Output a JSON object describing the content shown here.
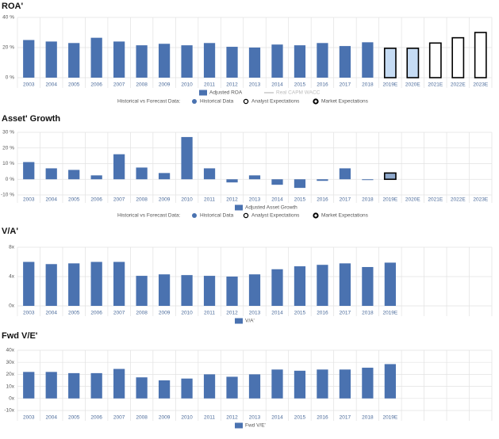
{
  "chart_data": [
    {
      "type": "bar",
      "title": "ROA'",
      "categories": [
        "2003",
        "2004",
        "2005",
        "2006",
        "2007",
        "2008",
        "2009",
        "2010",
        "2011",
        "2012",
        "2013",
        "2014",
        "2015",
        "2016",
        "2017",
        "2018",
        "2019E",
        "2020E",
        "2021E",
        "2022E",
        "2023E"
      ],
      "series": [
        {
          "name": "Adjusted ROA",
          "color": "#4a72b0",
          "values": [
            25,
            24,
            23,
            26.5,
            24,
            21.5,
            22.5,
            21.5,
            23,
            20.5,
            20,
            22,
            21.5,
            23,
            21,
            23.5,
            19.5,
            19.5,
            23,
            26.5,
            30
          ],
          "colors": [
            "#4a72b0",
            "#4a72b0",
            "#4a72b0",
            "#4a72b0",
            "#4a72b0",
            "#4a72b0",
            "#4a72b0",
            "#4a72b0",
            "#4a72b0",
            "#4a72b0",
            "#4a72b0",
            "#4a72b0",
            "#4a72b0",
            "#4a72b0",
            "#4a72b0",
            "#4a72b0",
            "#c6dcf4",
            "#c6dcf4",
            "#ffffff",
            "#ffffff",
            "#ffffff"
          ],
          "borders": [
            null,
            null,
            null,
            null,
            null,
            null,
            null,
            null,
            null,
            null,
            null,
            null,
            null,
            null,
            null,
            null,
            "#000000",
            "#000000",
            "#000000",
            "#000000",
            "#000000"
          ]
        }
      ],
      "extra_legend": {
        "name": "Real CAPM WACC",
        "color": "#c8c8c8"
      },
      "forecast_legend": {
        "title": "Historical vs Forecast Data:",
        "items": [
          "Historical Data",
          "Analyst Expectations",
          "Market Expectations"
        ]
      },
      "ylim": [
        0,
        40
      ],
      "yticks": [
        {
          "value": 0,
          "label": "0 %"
        },
        {
          "value": 20,
          "label": "20 %"
        },
        {
          "value": 40,
          "label": "40 %"
        }
      ],
      "grid": true
    },
    {
      "type": "bar",
      "title": "Asset' Growth",
      "categories": [
        "2003",
        "2004",
        "2005",
        "2006",
        "2007",
        "2008",
        "2009",
        "2010",
        "2011",
        "2012",
        "2013",
        "2014",
        "2015",
        "2016",
        "2017",
        "2018",
        "2019E",
        "2020E",
        "2021E",
        "2022E",
        "2023E"
      ],
      "series": [
        {
          "name": "Adjusted Asset Growth",
          "color": "#4a72b0",
          "values": [
            11,
            7,
            6,
            2.5,
            16,
            7.5,
            4,
            27,
            7,
            -2,
            2.5,
            -3.5,
            -5.5,
            -1,
            7,
            -0.5,
            4,
            0,
            0,
            0,
            0
          ],
          "colors": [
            "#4a72b0",
            "#4a72b0",
            "#4a72b0",
            "#4a72b0",
            "#4a72b0",
            "#4a72b0",
            "#4a72b0",
            "#4a72b0",
            "#4a72b0",
            "#4a72b0",
            "#4a72b0",
            "#4a72b0",
            "#4a72b0",
            "#4a72b0",
            "#4a72b0",
            "#4a72b0",
            "#8fa9cc",
            "#c6dcf4",
            "#ffffff",
            "#ffffff",
            "#ffffff"
          ],
          "borders": [
            null,
            null,
            null,
            null,
            null,
            null,
            null,
            null,
            null,
            null,
            null,
            null,
            null,
            null,
            null,
            null,
            "#000000",
            "#000000",
            "#000000",
            "#000000",
            "#000000"
          ]
        }
      ],
      "forecast_legend": {
        "title": "Historical vs Forecast Data:",
        "items": [
          "Historical Data",
          "Analyst Expectations",
          "Market Expectations"
        ]
      },
      "ylim": [
        -10,
        30
      ],
      "yticks": [
        {
          "value": -10,
          "label": "-10 %"
        },
        {
          "value": 0,
          "label": "0 %"
        },
        {
          "value": 10,
          "label": "10 %"
        },
        {
          "value": 20,
          "label": "20 %"
        },
        {
          "value": 30,
          "label": "30 %"
        }
      ],
      "grid": true
    },
    {
      "type": "bar",
      "title": "V/A'",
      "categories": [
        "2003",
        "2004",
        "2005",
        "2006",
        "2007",
        "2008",
        "2009",
        "2010",
        "2011",
        "2012",
        "2013",
        "2014",
        "2015",
        "2016",
        "2017",
        "2018",
        "2019E",
        null,
        null,
        null,
        null
      ],
      "series": [
        {
          "name": "V/A'",
          "color": "#4a72b0",
          "values": [
            6,
            5.7,
            5.8,
            6,
            6,
            4.1,
            4.3,
            4.2,
            4.1,
            4,
            4.3,
            5,
            5.4,
            5.6,
            5.8,
            5.3,
            5.9,
            null,
            null,
            null,
            null
          ]
        }
      ],
      "ylim": [
        0,
        8
      ],
      "yticks": [
        {
          "value": 0,
          "label": "0x"
        },
        {
          "value": 4,
          "label": "4x"
        },
        {
          "value": 8,
          "label": "8x"
        }
      ],
      "grid": true
    },
    {
      "type": "bar",
      "title": "Fwd V/E'",
      "categories": [
        "2003",
        "2004",
        "2005",
        "2006",
        "2007",
        "2008",
        "2009",
        "2010",
        "2011",
        "2012",
        "2013",
        "2014",
        "2015",
        "2016",
        "2017",
        "2018",
        "2019E",
        null,
        null,
        null,
        null
      ],
      "series": [
        {
          "name": "Fwd V/E'",
          "color": "#4a72b0",
          "values": [
            22,
            22,
            21,
            21,
            24.5,
            17.5,
            15,
            16.5,
            20,
            18,
            20,
            24,
            23,
            24,
            24,
            25.5,
            28.5,
            null,
            null,
            null,
            null
          ]
        }
      ],
      "ylim": [
        -10,
        40
      ],
      "yticks": [
        {
          "value": -10,
          "label": "-10x"
        },
        {
          "value": 0,
          "label": "0x"
        },
        {
          "value": 10,
          "label": "10x"
        },
        {
          "value": 20,
          "label": "20x"
        },
        {
          "value": 30,
          "label": "30x"
        },
        {
          "value": 40,
          "label": "40x"
        }
      ],
      "grid": true
    }
  ]
}
